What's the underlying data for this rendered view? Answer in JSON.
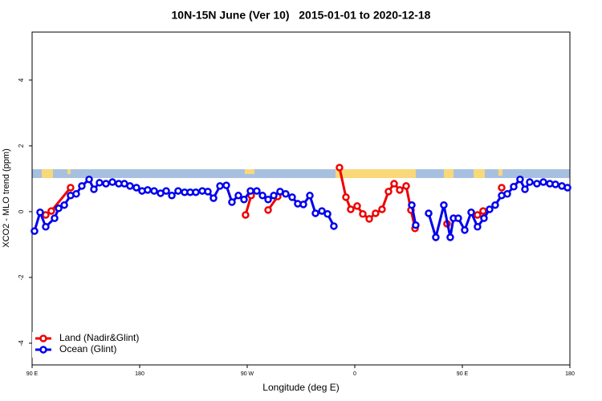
{
  "chart_data": {
    "type": "line",
    "title": "10N-15N June (Ver 10)   2015-01-01 to 2020-12-18",
    "x_label": "Longitude (deg E)",
    "y_label": "XCO2 - MLO trend (ppm)",
    "xlim": [
      90,
      540
    ],
    "xticks": [
      {
        "value": 90,
        "label": "90 E"
      },
      {
        "value": 180,
        "label": "180"
      },
      {
        "value": 270,
        "label": "90 W"
      },
      {
        "value": 360,
        "label": "0"
      },
      {
        "value": 450,
        "label": "90 E"
      },
      {
        "value": 540,
        "label": "180"
      }
    ],
    "ylim": [
      -4.66,
      5.46
    ],
    "yticks": [
      -4,
      -2,
      0,
      2,
      4
    ],
    "legend": "bottom-left",
    "series": [
      {
        "name": "Land (Nadir&Glint)",
        "color": "#ee0000",
        "x": [
          101.4,
          106.1,
          122.2,
          null,
          268.6,
          273.3,
          null,
          287.5,
          295.5,
          null,
          347.2,
          352.6,
          356.6,
          362.0,
          366.7,
          372.1,
          377.4,
          382.8,
          388.2,
          392.9,
          397.6,
          403.0,
          407.0,
          410.4,
          null,
          437.2,
          null,
          462.7,
          467.4,
          null,
          482.9
        ],
        "values": [
          -0.1,
          0.02,
          0.73,
          null,
          -0.1,
          0.49,
          null,
          0.05,
          0.46,
          null,
          1.34,
          0.44,
          0.07,
          0.17,
          -0.07,
          -0.22,
          -0.05,
          0.07,
          0.61,
          0.85,
          0.66,
          0.78,
          0.05,
          -0.51,
          null,
          -0.37,
          null,
          -0.1,
          0.02,
          null,
          0.73
        ]
      },
      {
        "name": "Ocean (Glint)",
        "color": "#0000ee",
        "x": [
          92.0,
          96.7,
          101.4,
          108.8,
          112.2,
          116.9,
          122.2,
          126.9,
          131.6,
          137.7,
          141.7,
          146.4,
          151.8,
          157.2,
          162.5,
          167.2,
          171.9,
          177.3,
          182.0,
          186.7,
          192.1,
          197.5,
          202.2,
          206.9,
          212.2,
          217.6,
          222.3,
          227.0,
          232.4,
          237.1,
          241.8,
          247.2,
          252.5,
          257.2,
          262.6,
          267.3,
          272.7,
          278.0,
          282.8,
          287.5,
          292.2,
          297.5,
          302.2,
          307.6,
          312.3,
          317.0,
          322.4,
          327.1,
          332.5,
          337.2,
          342.5,
          null,
          407.7,
          411.0,
          null,
          421.8,
          427.8,
          434.5,
          439.9,
          442.6,
          446.6,
          452.0,
          457.4,
          462.7,
          468.1,
          472.8,
          477.5,
          482.9,
          487.6,
          493.0,
          498.3,
          502.4,
          506.4,
          512.4,
          517.8,
          523.2,
          527.9,
          533.3,
          538.0
        ],
        "values": [
          -0.59,
          -0.02,
          -0.46,
          -0.2,
          0.1,
          0.2,
          0.49,
          0.54,
          0.78,
          0.98,
          0.68,
          0.88,
          0.85,
          0.9,
          0.85,
          0.85,
          0.78,
          0.73,
          0.63,
          0.66,
          0.63,
          0.56,
          0.63,
          0.49,
          0.63,
          0.59,
          0.59,
          0.59,
          0.63,
          0.61,
          0.41,
          0.78,
          0.8,
          0.29,
          0.49,
          0.37,
          0.63,
          0.63,
          0.49,
          0.37,
          0.49,
          0.61,
          0.54,
          0.44,
          0.24,
          0.22,
          0.49,
          -0.05,
          0.02,
          -0.07,
          -0.44,
          null,
          0.2,
          -0.41,
          null,
          -0.05,
          -0.78,
          0.2,
          -0.78,
          -0.2,
          -0.2,
          -0.56,
          -0.02,
          -0.46,
          -0.2,
          0.07,
          0.2,
          0.49,
          0.54,
          0.76,
          0.98,
          0.68,
          0.9,
          0.85,
          0.9,
          0.85,
          0.83,
          0.78,
          0.73
        ]
      }
    ]
  }
}
